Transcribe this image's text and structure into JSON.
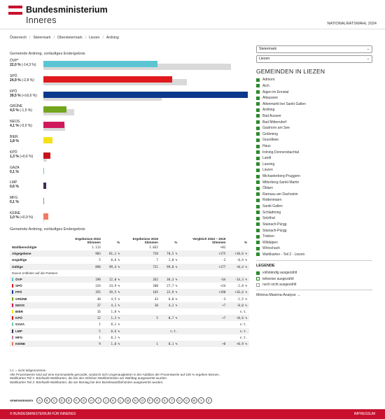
{
  "header": {
    "ministry_line1": "Bundesministerium",
    "ministry_line2": "Inneres",
    "election": "NATIONALRATSWAHL 2024"
  },
  "breadcrumb": [
    "Österreich",
    "Steiermark",
    "Obersteiermark",
    "Liezen",
    "Ardning"
  ],
  "chart": {
    "title": "Gemeinde Ardning, vorläufiges Endergebnis",
    "parties": [
      {
        "name": "ÖVP*",
        "value": "22,0 %",
        "change": "(-14,3 %)",
        "pct": 22.0,
        "prev": 36.3,
        "color": "#5bc5d4"
      },
      {
        "name": "SPÖ",
        "value": "24,9 %",
        "change": "(-2,8 %)",
        "pct": 24.9,
        "prev": 27.7,
        "color": "#e0191c"
      },
      {
        "name": "FPÖ",
        "value": "39,5 %",
        "change": "(+16,6 %)",
        "pct": 39.5,
        "prev": 22.9,
        "color": "#0b3a8c"
      },
      {
        "name": "GRÜNE",
        "value": "4,5 %",
        "change": "(-1,5 %)",
        "pct": 4.5,
        "prev": 6.0,
        "color": "#74a51f"
      },
      {
        "name": "NEOS",
        "value": "4,1 %",
        "change": "(-0,0 %)",
        "pct": 4.1,
        "prev": 4.2,
        "color": "#d0185d"
      },
      {
        "name": "BIER",
        "value": "1,8 %",
        "change": "",
        "pct": 1.8,
        "prev": 0,
        "color": "#f5e11a"
      },
      {
        "name": "KPÖ",
        "value": "1,3 %",
        "change": "(+0,6 %)",
        "pct": 1.3,
        "prev": 0.7,
        "color": "#c8151b"
      },
      {
        "name": "GAZA",
        "value": "0,1 %",
        "change": "",
        "pct": 0.1,
        "prev": 0,
        "color": "#76c6b0"
      },
      {
        "name": "LMP",
        "value": "0,6 %",
        "change": "",
        "pct": 0.6,
        "prev": 0,
        "color": "#3c2b5a"
      },
      {
        "name": "MFG",
        "value": "0,1 %",
        "change": "",
        "pct": 0.1,
        "prev": 0,
        "color": "#b47b9e"
      },
      {
        "name": "KEINE",
        "value": "1,0 %",
        "change": "(+0,9 %)",
        "pct": 1.0,
        "prev": 0.1,
        "color": "#f27b62"
      }
    ]
  },
  "table": {
    "title": "Gemeinde Ardning, vorläufiges Endergebnis",
    "headers": {
      "res2024": "Ergebnisse 2024",
      "stimmen": "Stimmen",
      "res2019": "Ergebnisse 2019",
      "stimmen2": "Stimmen",
      "compare": "Vergleich 2024 – 2019",
      "stimmen3": "Stimmen",
      "pct": "%"
    },
    "summary_rows": [
      {
        "label": "Wahlberechtigte",
        "s24": "1.113",
        "p24": "",
        "s19": "1.032",
        "p19": "",
        "ds": "+81",
        "dp": ""
      },
      {
        "label": "Abgegebene",
        "s24": "903",
        "p24": "81,1 %",
        "s19": "728",
        "p19": "70,5 %",
        "ds": "+175",
        "dp": "+10,6 %"
      },
      {
        "label": "Ungültige",
        "s24": "5",
        "p24": "0,6 %",
        "s19": "7",
        "p19": "1,0 %",
        "ds": "-2",
        "dp": "-0,4 %"
      },
      {
        "label": "Gültige",
        "s24": "898",
        "p24": "99,4 %",
        "s19": "721",
        "p19": "99,0 %",
        "ds": "+177",
        "dp": "+0,4 %"
      }
    ],
    "sub_label": "Davon entfielen auf die Parteien",
    "party_rows": [
      {
        "label": "ÖVP",
        "color": "#5bc5d4",
        "s24": "198",
        "p24": "22,0 %",
        "s19": "262",
        "p19": "36,3 %",
        "ds": "-64",
        "dp": "-14,3 %"
      },
      {
        "label": "SPÖ",
        "color": "#e0191c",
        "s24": "224",
        "p24": "24,9 %",
        "s19": "200",
        "p19": "27,7 %",
        "ds": "+24",
        "dp": "-2,8 %"
      },
      {
        "label": "FPÖ",
        "color": "#0b3a8c",
        "s24": "355",
        "p24": "39,5 %",
        "s19": "165",
        "p19": "22,9 %",
        "ds": "+190",
        "dp": "+16,6 %"
      },
      {
        "label": "GRÜNE",
        "color": "#74a51f",
        "s24": "40",
        "p24": "4,5 %",
        "s19": "43",
        "p19": "6,0 %",
        "ds": "-3",
        "dp": "-1,5 %"
      },
      {
        "label": "NEOS",
        "color": "#d0185d",
        "s24": "37",
        "p24": "4,1 %",
        "s19": "30",
        "p19": "4,2 %",
        "ds": "+7",
        "dp": "-0,0 %"
      },
      {
        "label": "BIER",
        "color": "#f5e11a",
        "s24": "16",
        "p24": "1,8 %",
        "s19": "",
        "p19": "",
        "ds": "",
        "dp": "n.t."
      },
      {
        "label": "KPÖ",
        "color": "#c8151b",
        "s24": "12",
        "p24": "1,3 %",
        "s19": "5",
        "p19": "0,7 %",
        "ds": "+7",
        "dp": "+0,6 %"
      },
      {
        "label": "GAZA",
        "color": "#76c6b0",
        "s24": "1",
        "p24": "0,1 %",
        "s19": "",
        "p19": "",
        "ds": "",
        "dp": "n.t."
      },
      {
        "label": "LMP",
        "color": "#3c2b5a",
        "s24": "5",
        "p24": "0,6 %",
        "s19": "",
        "p19": "n.t.",
        "ds": "",
        "dp": "n.t."
      },
      {
        "label": "MFG",
        "color": "#b47b9e",
        "s24": "1",
        "p24": "0,1 %",
        "s19": "",
        "p19": "",
        "ds": "",
        "dp": "n.t."
      },
      {
        "label": "KEINE",
        "color": "#f27b62",
        "s24": "9",
        "p24": "1,0 %",
        "s19": "1",
        "p19": "0,1 %",
        "ds": "+8",
        "dp": "+0,9 %"
      }
    ],
    "notes": [
      "n.t. = nicht teilgenommen",
      "Alle Prozentwerte sind auf eine Kommastelle gerundet, wodurch sich Ungenauigkeiten in der Addition der Prozentwerte auf 100 % ergeben können.",
      "Wahlkarten Teil 1: Briefwahl-Wahlkarten, die bei den örtlichen Wahlbehörden am Wahltag ausgewertet wurden.",
      "Wahlkarten Teil 2: Briefwahl-Wahlkarten, die am Montag bei den Bezirkswahlbehörden ausgewertet wurden."
    ]
  },
  "index": {
    "label": "GEMEINDEINDEX",
    "letters": [
      "A",
      "B",
      "C",
      "D",
      "E",
      "F",
      "G",
      "H",
      "I",
      "J",
      "K",
      "L",
      "M",
      "N",
      "O",
      "P",
      "R",
      "S",
      "T",
      "U",
      "V",
      "W",
      "Y",
      "Z"
    ]
  },
  "footer": {
    "left": "© BUNDESMINISTERIUM FÜR INNERES",
    "right": "IMPRESSUM"
  },
  "sidebar": {
    "select1": "Steiermark",
    "select2": "Liezen",
    "title": "GEMEINDEN IN LIEZEN",
    "gemeinden": [
      "Admont",
      "Aich",
      "Aigen im Ennstal",
      "Altaussee",
      "Altenmarkt bei Sankt Gallen",
      "Ardning",
      "Bad Aussee",
      "Bad Mitterndorf",
      "Gaishorn am See",
      "Gröbming",
      "Grundlsee",
      "Haus",
      "Irdning-Donnersbachtal",
      "Landl",
      "Lassing",
      "Liezen",
      "Michaelerberg-Pruggern",
      "Mitterberg-Sankt Martin",
      "Öblarn",
      "Ramsau am Dachstein",
      "Rottenmann",
      "Sankt Gallen",
      "Schladming",
      "Selzthal",
      "Stainach-Pürgg",
      "Stainach-Pürgg",
      "Trieben",
      "Wildalpen",
      "Wörschach",
      "Wahlkarten - Teil 2 - Liezen"
    ],
    "legend_title": "LEGENDE",
    "legend": [
      {
        "label": "vollständig ausgezählt",
        "color": "#2e8b2e",
        "border": "#2e8b2e"
      },
      {
        "label": "teilweise ausgezählt",
        "color": "#ffffff",
        "border": "#2e8b2e"
      },
      {
        "label": "noch nicht ausgezählt",
        "color": "#ffffff",
        "border": "#999999"
      }
    ],
    "minmax": "Minima-Maxima-Analyse →"
  }
}
